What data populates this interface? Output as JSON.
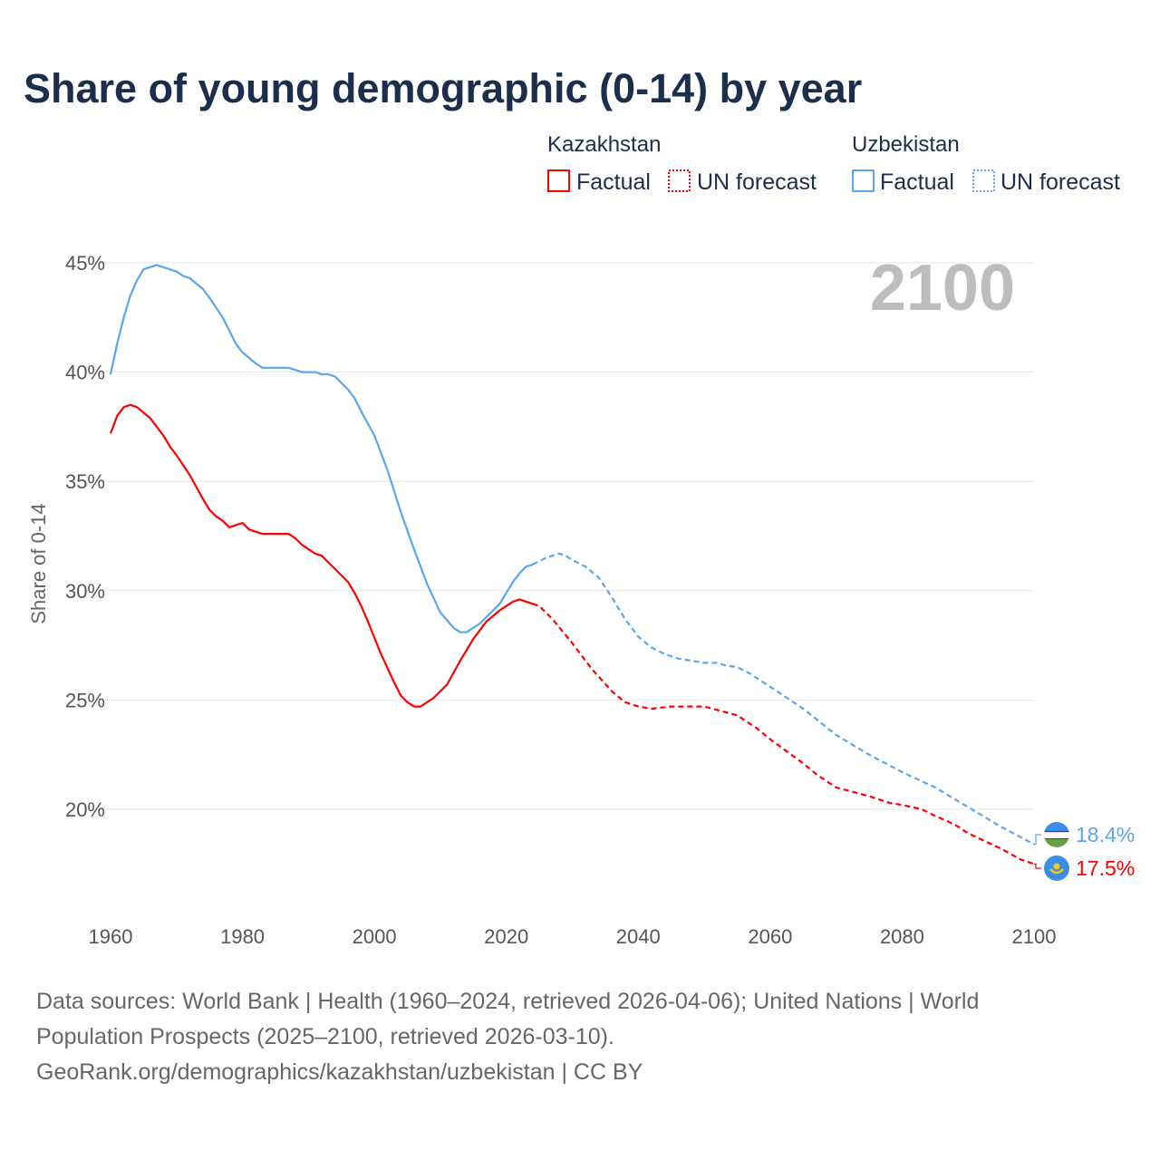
{
  "chart_data": {
    "type": "line",
    "title": "Share of young demographic (0-14) by year",
    "ylabel": "Share of 0-14",
    "xlabel": "",
    "xlim": [
      1960,
      2100
    ],
    "ylim": [
      15.5,
      45
    ],
    "x_ticks": [
      "1960",
      "1980",
      "2000",
      "2020",
      "2040",
      "2060",
      "2080",
      "2100"
    ],
    "x_tick_values": [
      1960,
      1980,
      2000,
      2020,
      2040,
      2060,
      2080,
      2100
    ],
    "y_ticks": [
      "20%",
      "25%",
      "30%",
      "35%",
      "40%",
      "45%"
    ],
    "y_tick_values": [
      20,
      25,
      30,
      35,
      40,
      45
    ],
    "grid": "horizontal",
    "year_label": "2100",
    "legend": {
      "placement": "top-right",
      "groups": [
        {
          "country": "Kazakhstan",
          "factual": "Factual",
          "forecast": "UN forecast",
          "color": "#ff0000"
        },
        {
          "country": "Uzbekistan",
          "factual": "Factual",
          "forecast": "UN forecast",
          "color": "#5ba6ea"
        }
      ]
    },
    "factual_end_year": 2024,
    "series": [
      {
        "name": "Uzbekistan",
        "color": "#5ba6ea",
        "end_label": "18.4%",
        "flag": "uzbekistan-flag",
        "points": [
          [
            1960,
            39.9
          ],
          [
            1961,
            41.3
          ],
          [
            1962,
            42.5
          ],
          [
            1963,
            43.5
          ],
          [
            1964,
            44.2
          ],
          [
            1965,
            44.7
          ],
          [
            1967,
            44.9
          ],
          [
            1969,
            44.7
          ],
          [
            1970,
            44.6
          ],
          [
            1971,
            44.4
          ],
          [
            1972,
            44.3
          ],
          [
            1974,
            43.8
          ],
          [
            1975,
            43.4
          ],
          [
            1977,
            42.5
          ],
          [
            1978,
            41.9
          ],
          [
            1979,
            41.3
          ],
          [
            1980,
            40.9
          ],
          [
            1982,
            40.4
          ],
          [
            1983,
            40.2
          ],
          [
            1985,
            40.2
          ],
          [
            1987,
            40.2
          ],
          [
            1989,
            40.0
          ],
          [
            1991,
            40.0
          ],
          [
            1992,
            39.9
          ],
          [
            1993,
            39.9
          ],
          [
            1994,
            39.8
          ],
          [
            1995,
            39.5
          ],
          [
            1996,
            39.2
          ],
          [
            1997,
            38.8
          ],
          [
            1998,
            38.2
          ],
          [
            2000,
            37.1
          ],
          [
            2002,
            35.5
          ],
          [
            2004,
            33.6
          ],
          [
            2006,
            31.9
          ],
          [
            2008,
            30.3
          ],
          [
            2010,
            29.0
          ],
          [
            2012,
            28.3
          ],
          [
            2013,
            28.1
          ],
          [
            2014,
            28.1
          ],
          [
            2016,
            28.5
          ],
          [
            2017,
            28.8
          ],
          [
            2019,
            29.4
          ],
          [
            2020,
            29.9
          ],
          [
            2021,
            30.4
          ],
          [
            2022,
            30.8
          ],
          [
            2023,
            31.1
          ],
          [
            2024,
            31.2
          ],
          [
            2026,
            31.5
          ],
          [
            2028,
            31.7
          ],
          [
            2029,
            31.6
          ],
          [
            2030,
            31.4
          ],
          [
            2032,
            31.1
          ],
          [
            2034,
            30.6
          ],
          [
            2036,
            29.7
          ],
          [
            2038,
            28.7
          ],
          [
            2040,
            27.9
          ],
          [
            2042,
            27.4
          ],
          [
            2044,
            27.1
          ],
          [
            2046,
            26.9
          ],
          [
            2048,
            26.8
          ],
          [
            2050,
            26.7
          ],
          [
            2052,
            26.7
          ],
          [
            2053,
            26.6
          ],
          [
            2055,
            26.5
          ],
          [
            2057,
            26.2
          ],
          [
            2060,
            25.6
          ],
          [
            2065,
            24.6
          ],
          [
            2070,
            23.4
          ],
          [
            2075,
            22.5
          ],
          [
            2080,
            21.7
          ],
          [
            2085,
            21.0
          ],
          [
            2090,
            20.1
          ],
          [
            2095,
            19.2
          ],
          [
            2100,
            18.4
          ]
        ]
      },
      {
        "name": "Kazakhstan",
        "color": "#ff0000",
        "end_label": "17.5%",
        "flag": "kazakhstan-flag",
        "points": [
          [
            1960,
            37.2
          ],
          [
            1961,
            38.0
          ],
          [
            1962,
            38.4
          ],
          [
            1963,
            38.5
          ],
          [
            1964,
            38.4
          ],
          [
            1966,
            37.9
          ],
          [
            1968,
            37.1
          ],
          [
            1969,
            36.6
          ],
          [
            1970,
            36.2
          ],
          [
            1972,
            35.3
          ],
          [
            1974,
            34.2
          ],
          [
            1975,
            33.7
          ],
          [
            1976,
            33.4
          ],
          [
            1977,
            33.2
          ],
          [
            1978,
            32.9
          ],
          [
            1980,
            33.1
          ],
          [
            1981,
            32.8
          ],
          [
            1983,
            32.6
          ],
          [
            1985,
            32.6
          ],
          [
            1987,
            32.6
          ],
          [
            1988,
            32.4
          ],
          [
            1989,
            32.1
          ],
          [
            1991,
            31.7
          ],
          [
            1992,
            31.6
          ],
          [
            1993,
            31.3
          ],
          [
            1995,
            30.7
          ],
          [
            1996,
            30.4
          ],
          [
            1997,
            29.9
          ],
          [
            1998,
            29.3
          ],
          [
            1999,
            28.6
          ],
          [
            2001,
            27.1
          ],
          [
            2003,
            25.8
          ],
          [
            2004,
            25.2
          ],
          [
            2005,
            24.9
          ],
          [
            2006,
            24.7
          ],
          [
            2007,
            24.7
          ],
          [
            2009,
            25.1
          ],
          [
            2011,
            25.7
          ],
          [
            2013,
            26.8
          ],
          [
            2015,
            27.8
          ],
          [
            2017,
            28.6
          ],
          [
            2019,
            29.1
          ],
          [
            2020,
            29.3
          ],
          [
            2021,
            29.5
          ],
          [
            2022,
            29.6
          ],
          [
            2024,
            29.4
          ],
          [
            2025,
            29.3
          ],
          [
            2027,
            28.7
          ],
          [
            2030,
            27.6
          ],
          [
            2033,
            26.4
          ],
          [
            2036,
            25.4
          ],
          [
            2038,
            24.9
          ],
          [
            2040,
            24.7
          ],
          [
            2042,
            24.6
          ],
          [
            2045,
            24.7
          ],
          [
            2050,
            24.7
          ],
          [
            2055,
            24.3
          ],
          [
            2058,
            23.7
          ],
          [
            2060,
            23.2
          ],
          [
            2065,
            22.1
          ],
          [
            2067,
            21.6
          ],
          [
            2070,
            21.0
          ],
          [
            2075,
            20.6
          ],
          [
            2078,
            20.3
          ],
          [
            2080,
            20.2
          ],
          [
            2083,
            20.0
          ],
          [
            2085,
            19.7
          ],
          [
            2088,
            19.3
          ],
          [
            2090,
            18.9
          ],
          [
            2095,
            18.2
          ],
          [
            2098,
            17.7
          ],
          [
            2100,
            17.5
          ]
        ]
      }
    ],
    "sources": [
      "Data sources: World Bank | Health (1960–2024, retrieved 2026-04-06); United Nations | World",
      "Population Prospects (2025–2100, retrieved 2026-03-10).",
      "GeoRank.org/demographics/kazakhstan/uzbekistan | CC BY"
    ]
  }
}
